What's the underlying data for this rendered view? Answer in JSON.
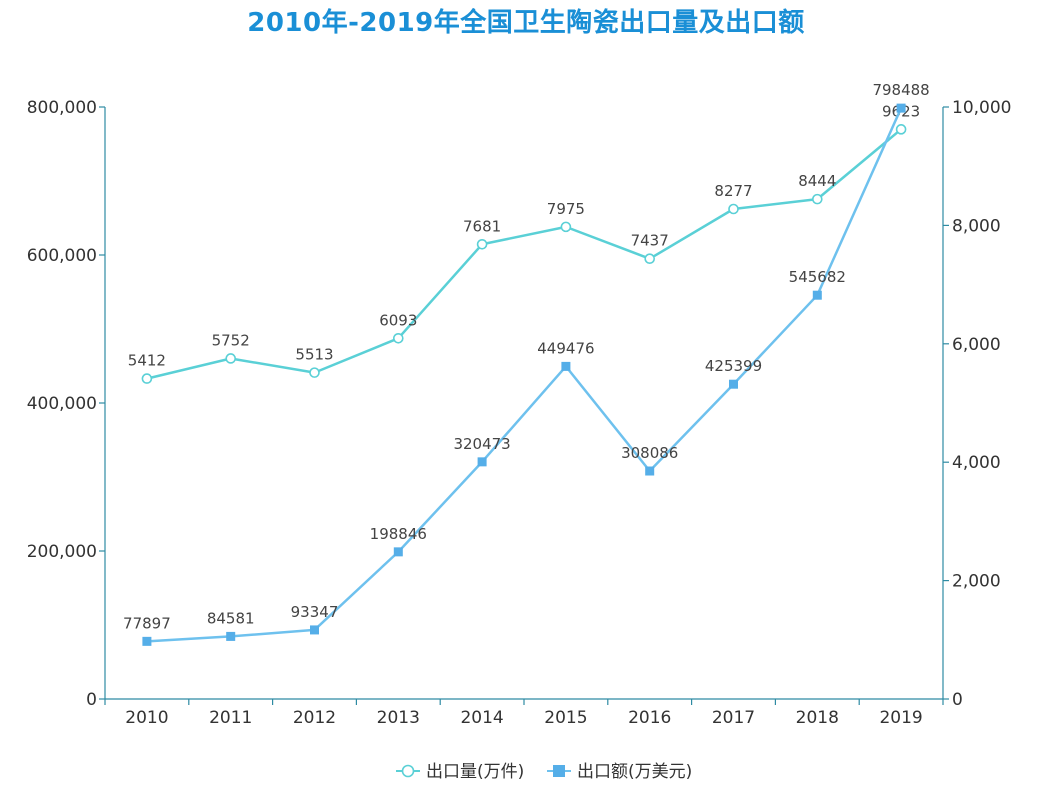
{
  "chart_data": {
    "type": "line",
    "title": "2010年-2019年全国卫生陶瓷出口量及出口额",
    "categories": [
      "2010",
      "2011",
      "2012",
      "2013",
      "2014",
      "2015",
      "2016",
      "2017",
      "2018",
      "2019"
    ],
    "series": [
      {
        "name": "出口量(万件)",
        "axis": "right",
        "values": [
          5412,
          5752,
          5513,
          6093,
          7681,
          7975,
          7437,
          8277,
          8444,
          9623
        ],
        "labels": [
          "5412",
          "5752",
          "5513",
          "6093",
          "7681",
          "7975",
          "7437",
          "8277",
          "8444",
          "9623"
        ],
        "color": "#5ad0d6",
        "marker": "hollow-circle"
      },
      {
        "name": "出口额(万美元)",
        "axis": "left",
        "values": [
          77897,
          84581,
          93347,
          198846,
          320473,
          449476,
          308086,
          425399,
          545682,
          798488
        ],
        "labels": [
          "77897",
          "84581",
          "93347",
          "198846",
          "320473",
          "449476",
          "308086",
          "425399",
          "545682",
          "798488"
        ],
        "color": "#6ec1ee",
        "marker": "filled-square"
      }
    ],
    "y_left": {
      "ylim": [
        0,
        800000
      ],
      "ticks": [
        0,
        200000,
        400000,
        600000,
        800000
      ],
      "tick_labels": [
        "0",
        "200,000",
        "400,000",
        "600,000",
        "800,000"
      ]
    },
    "y_right": {
      "ylim": [
        0,
        10000
      ],
      "ticks": [
        0,
        2000,
        4000,
        6000,
        8000,
        10000
      ],
      "tick_labels": [
        "0",
        "2,000",
        "4,000",
        "6,000",
        "8,000",
        "10,000"
      ]
    },
    "grid": false,
    "legend": "bottom-center",
    "axis_color": "#2e8ba3"
  }
}
